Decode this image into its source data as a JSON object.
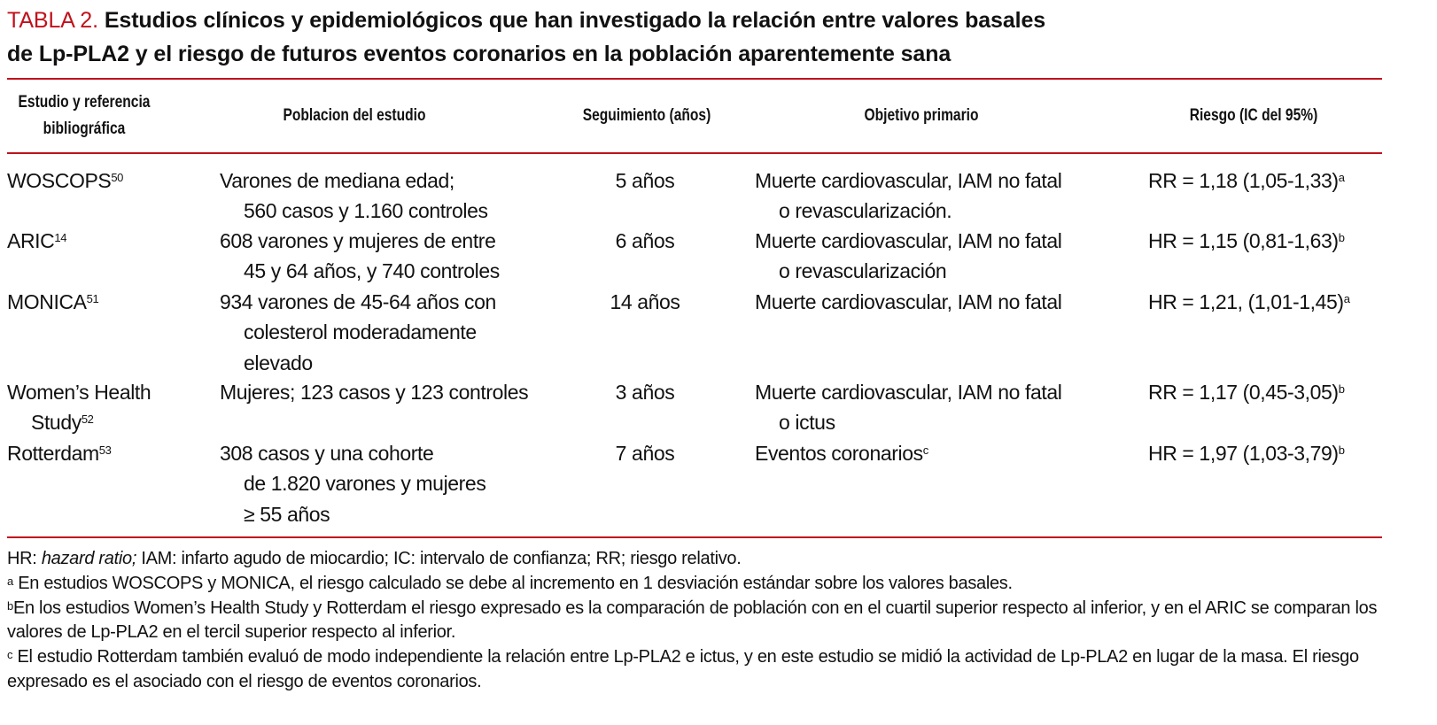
{
  "title": {
    "label": "TABLA 2.",
    "line1": "Estudios clínicos y epidemiológicos que han investigado la relación entre valores basales",
    "line2": "de Lp-PLA2 y el riesgo de futuros eventos coronarios en la población aparentemente sana"
  },
  "colors": {
    "accent": "#c0121c"
  },
  "headers": [
    "Estudio y referencia bibliográfica",
    "Poblacion del estudio",
    "Seguimiento (años)",
    "Objetivo primario",
    "Riesgo (IC del 95%)"
  ],
  "rows": [
    {
      "study": [
        "WOSCOPS"
      ],
      "ref": "50",
      "population": [
        "Varones de mediana edad;",
        "560 casos y 1.160 controles"
      ],
      "followup": "5 años",
      "objective": [
        "Muerte cardiovascular, IAM no fatal",
        "o revascularización."
      ],
      "risk": "RR = 1,18 (1,05-1,33)",
      "risk_note": "a"
    },
    {
      "study": [
        "ARIC"
      ],
      "ref": "14",
      "population": [
        "608 varones y mujeres de entre",
        "45 y 64 años, y 740 controles"
      ],
      "followup": "6 años",
      "objective": [
        "Muerte cardiovascular, IAM no fatal",
        "o revascularización"
      ],
      "risk": "HR = 1,15 (0,81-1,63)",
      "risk_note": "b"
    },
    {
      "study": [
        "MONICA"
      ],
      "ref": "51",
      "population": [
        "934 varones de 45-64 años con",
        "colesterol moderadamente",
        "elevado"
      ],
      "followup": "14 años",
      "objective": [
        "Muerte cardiovascular, IAM no fatal"
      ],
      "risk": "HR = 1,21, (1,01-1,45)",
      "risk_note": "a"
    },
    {
      "study": [
        "Women’s Health",
        "Study"
      ],
      "ref": "52",
      "population": [
        "Mujeres; 123 casos y 123 controles"
      ],
      "followup": "3 años",
      "objective": [
        "Muerte cardiovascular, IAM no fatal",
        "o ictus"
      ],
      "risk": "RR = 1,17 (0,45-3,05)",
      "risk_note": "b"
    },
    {
      "study": [
        "Rotterdam"
      ],
      "ref": "53",
      "population": [
        "308 casos y una cohorte",
        "de 1.820 varones y mujeres",
        "≥ 55 años"
      ],
      "followup": "7 años",
      "objective": [
        "Eventos coronarios"
      ],
      "objective_note": "c",
      "risk": "HR = 1,97 (1,03-3,79)",
      "risk_note": "b"
    }
  ],
  "notes": {
    "abbrev_a": "HR: ",
    "abbrev_italic": "hazard ratio;",
    "abbrev_b": " IAM: infarto agudo de miocardio; IC: intervalo de confianza; RR; riesgo relativo.",
    "a_mark": "a",
    "a": "En estudios WOSCOPS y MONICA, el riesgo calculado se debe al incremento en 1 desviación estándar sobre los valores basales.",
    "b_mark": "b",
    "b": "En los estudios Women’s Health Study y Rotterdam el riesgo expresado es la comparación de población con en el cuartil superior respecto al inferior, y en el ARIC se comparan los valores de Lp-PLA2 en el tercil superior respecto al inferior.",
    "c_mark": "c",
    "c": "El estudio Rotterdam también evaluó de modo independiente la relación entre Lp-PLA2 e ictus, y en este estudio se midió la actividad de Lp-PLA2 en lugar de la masa. El riesgo expresado es el asociado con el riesgo de eventos coronarios."
  }
}
